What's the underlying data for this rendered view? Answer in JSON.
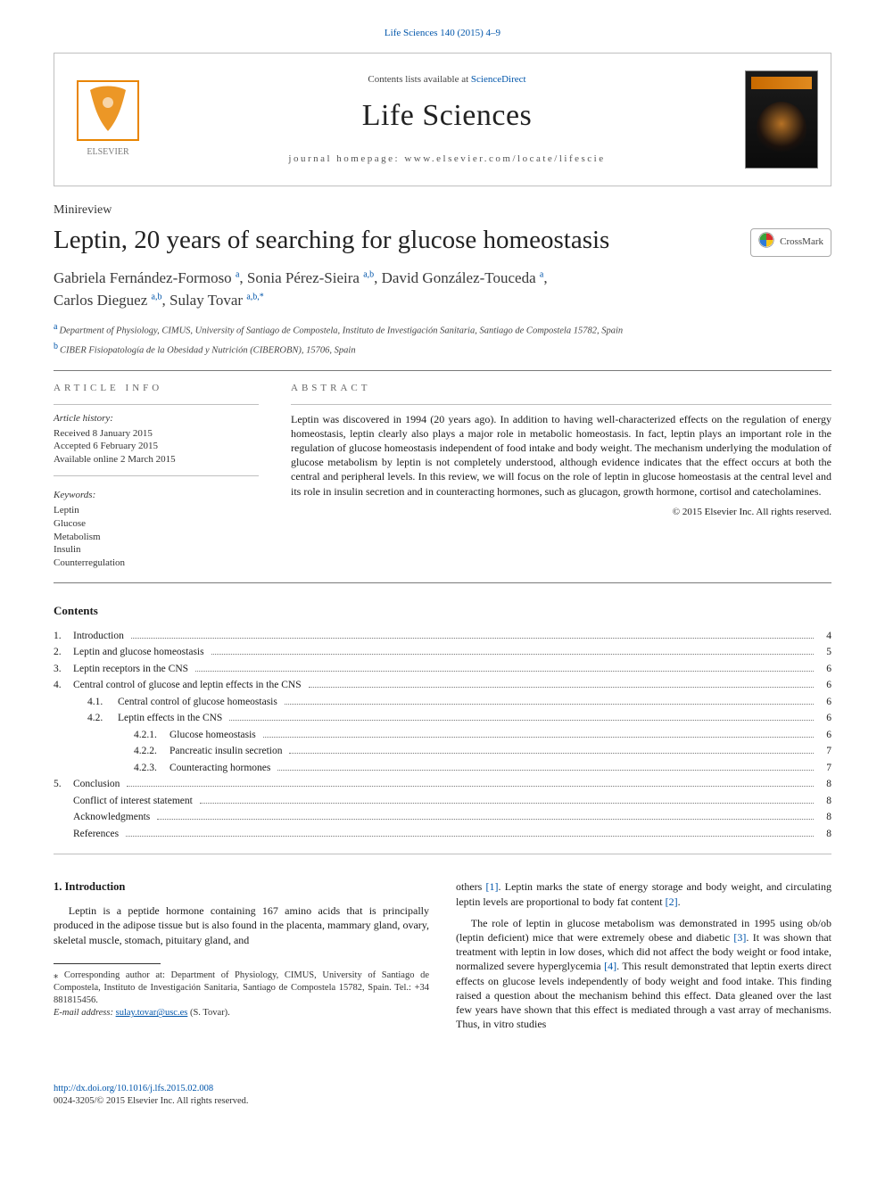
{
  "journal_ref": {
    "name": "Life Sciences",
    "citation": "Life Sciences 140 (2015) 4–9"
  },
  "header": {
    "contents_prefix": "Contents lists available at ",
    "contents_link": "ScienceDirect",
    "journal_name": "Life Sciences",
    "homepage_prefix": "journal homepage: ",
    "homepage": "www.elsevier.com/locate/lifescie"
  },
  "article_type": "Minireview",
  "title": "Leptin, 20 years of searching for glucose homeostasis",
  "crossmark_label": "CrossMark",
  "authors": [
    {
      "name": "Gabriela Fernández-Formoso",
      "aff": "a"
    },
    {
      "name": "Sonia Pérez-Sieira",
      "aff": "a,b"
    },
    {
      "name": "David González-Touceda",
      "aff": "a"
    },
    {
      "name": "Carlos Dieguez",
      "aff": "a,b"
    },
    {
      "name": "Sulay Tovar",
      "aff": "a,b,*",
      "footnote": "*"
    }
  ],
  "affiliations": [
    {
      "label": "a",
      "text": "Department of Physiology, CIMUS, University of Santiago de Compostela, Instituto de Investigación Sanitaria, Santiago de Compostela 15782, Spain"
    },
    {
      "label": "b",
      "text": "CIBER Fisiopatología de la Obesidad y Nutrición (CIBEROBN), 15706, Spain"
    }
  ],
  "article_info": {
    "heading": "article info",
    "history_head": "Article history:",
    "received": "Received 8 January 2015",
    "accepted": "Accepted 6 February 2015",
    "online": "Available online 2 March 2015",
    "keywords_head": "Keywords:",
    "keywords": [
      "Leptin",
      "Glucose",
      "Metabolism",
      "Insulin",
      "Counterregulation"
    ]
  },
  "abstract": {
    "heading": "abstract",
    "text": "Leptin was discovered in 1994 (20 years ago). In addition to having well-characterized effects on the regulation of energy homeostasis, leptin clearly also plays a major role in metabolic homeostasis. In fact, leptin plays an important role in the regulation of glucose homeostasis independent of food intake and body weight. The mechanism underlying the modulation of glucose metabolism by leptin is not completely understood, although evidence indicates that the effect occurs at both the central and peripheral levels. In this review, we will focus on the role of leptin in glucose homeostasis at the central level and its role in insulin secretion and in counteracting hormones, such as glucagon, growth hormone, cortisol and catecholamines.",
    "copyright": "© 2015 Elsevier Inc. All rights reserved."
  },
  "contents_heading": "Contents",
  "toc": [
    {
      "num": "1.",
      "label": "Introduction",
      "page": "4",
      "indent": 0
    },
    {
      "num": "2.",
      "label": "Leptin and glucose homeostasis",
      "page": "5",
      "indent": 0
    },
    {
      "num": "3.",
      "label": "Leptin receptors in the CNS",
      "page": "6",
      "indent": 0
    },
    {
      "num": "4.",
      "label": "Central control of glucose and leptin effects in the CNS",
      "page": "6",
      "indent": 0
    },
    {
      "num": "4.1.",
      "label": "Central control of glucose homeostasis",
      "page": "6",
      "indent": 1
    },
    {
      "num": "4.2.",
      "label": "Leptin effects in the CNS",
      "page": "6",
      "indent": 1
    },
    {
      "num": "4.2.1.",
      "label": "Glucose homeostasis",
      "page": "6",
      "indent": 2
    },
    {
      "num": "4.2.2.",
      "label": "Pancreatic insulin secretion",
      "page": "7",
      "indent": 2
    },
    {
      "num": "4.2.3.",
      "label": "Counteracting hormones",
      "page": "7",
      "indent": 2
    },
    {
      "num": "5.",
      "label": "Conclusion",
      "page": "8",
      "indent": 0
    },
    {
      "num": "",
      "label": "Conflict of interest statement",
      "page": "8",
      "indent": -1
    },
    {
      "num": "",
      "label": "Acknowledgments",
      "page": "8",
      "indent": -1
    },
    {
      "num": "",
      "label": "References",
      "page": "8",
      "indent": -1
    }
  ],
  "intro_heading": "1. Introduction",
  "intro_para_1": "Leptin is a peptide hormone containing 167 amino acids that is principally produced in the adipose tissue but is also found in the placenta, mammary gland, ovary, skeletal muscle, stomach, pituitary gland, and",
  "intro_para_2a": "others ",
  "intro_para_2_ref1": "[1]",
  "intro_para_2b": ". Leptin marks the state of energy storage and body weight, and circulating leptin levels are proportional to body fat content ",
  "intro_para_2_ref2": "[2]",
  "intro_para_2c": ".",
  "intro_para_3a": "The role of leptin in glucose metabolism was demonstrated in 1995 using ob/ob (leptin deficient) mice that were extremely obese and diabetic ",
  "intro_para_3_ref3": "[3]",
  "intro_para_3b": ". It was shown that treatment with leptin in low doses, which did not affect the body weight or food intake, normalized severe hyperglycemia ",
  "intro_para_3_ref4": "[4]",
  "intro_para_3c": ". This result demonstrated that leptin exerts direct effects on glucose levels independently of body weight and food intake. This finding raised a question about the mechanism behind this effect. Data gleaned over the last few years have shown that this effect is mediated through a vast array of mechanisms. Thus, in vitro studies",
  "footnote": {
    "star": "⁎",
    "corr": "Corresponding author at: Department of Physiology, CIMUS, University of Santiago de Compostela, Instituto de Investigación Sanitaria, Santiago de Compostela 15782, Spain. Tel.: +34 881815456.",
    "email_label": "E-mail address:",
    "email": "sulay.tovar@usc.es",
    "email_name": "(S. Tovar)."
  },
  "doi": {
    "url": "http://dx.doi.org/10.1016/j.lfs.2015.02.008",
    "issn_line": "0024-3205/© 2015 Elsevier Inc. All rights reserved."
  },
  "colors": {
    "link": "#0055aa",
    "rule": "#7a7a7a",
    "text": "#1a1a1a",
    "bg": "#ffffff",
    "elsevier_orange": "#e98500",
    "elsevier_grey": "#7b7b7b"
  }
}
